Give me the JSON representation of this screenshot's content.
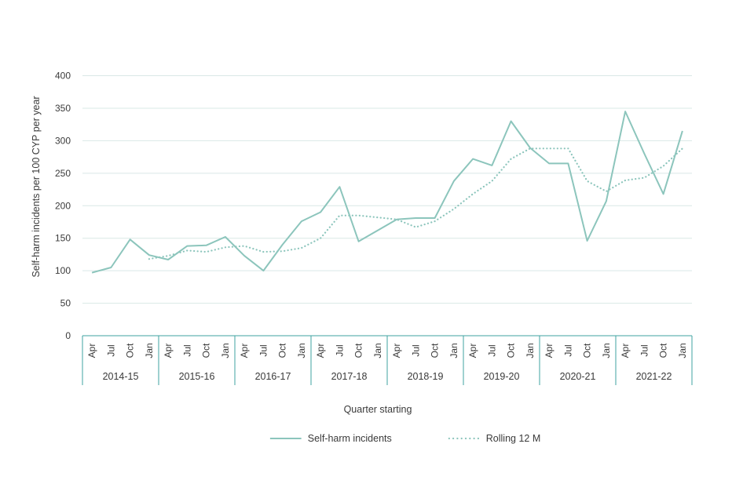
{
  "chart_data": {
    "type": "line",
    "title": "",
    "ylabel": "Self-harm incidents per 100 CYP per year",
    "xlabel": "Quarter starting",
    "ylim": [
      0,
      400
    ],
    "yticks": [
      0,
      50,
      100,
      150,
      200,
      250,
      300,
      350,
      400
    ],
    "quarters": [
      "Apr",
      "Jul",
      "Oct",
      "Jan"
    ],
    "year_groups": [
      "2014-15",
      "2015-16",
      "2016-17",
      "2017-18",
      "2018-19",
      "2019-20",
      "2020-21",
      "2021-22"
    ],
    "grid": true,
    "legend_position": "bottom",
    "series": [
      {
        "name": "Self-harm incidents",
        "style": "solid",
        "start_index": 0,
        "values": [
          97,
          105,
          148,
          124,
          117,
          138,
          139,
          152,
          123,
          100,
          140,
          176,
          190,
          229,
          145,
          162,
          179,
          181,
          181,
          238,
          272,
          262,
          330,
          289,
          265,
          265,
          146,
          207,
          345,
          280,
          218,
          315
        ]
      },
      {
        "name": "Rolling 12 M",
        "style": "dotted",
        "start_index": 3,
        "values": [
          118,
          123,
          131,
          129,
          136,
          138,
          129,
          130,
          135,
          150,
          185,
          185,
          182,
          179,
          167,
          176,
          195,
          218,
          238,
          272,
          288,
          288,
          288,
          238,
          222,
          239,
          243,
          261,
          288
        ]
      }
    ],
    "colors": {
      "series_solid": "#8CC5BC",
      "series_dotted": "#8CC5BC",
      "axis": "#3FA3A0",
      "gridline": "#D9E8E6",
      "text": "#3A3A3A"
    }
  }
}
